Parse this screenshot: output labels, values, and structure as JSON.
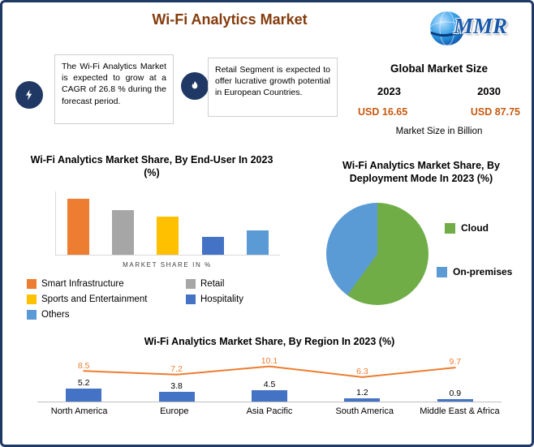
{
  "page": {
    "title": "Wi-Fi Analytics Market",
    "logo_text": "MMR"
  },
  "callouts": [
    {
      "icon": "lightning-bolt-icon",
      "text": "The Wi-Fi Analytics Market is expected to grow at a CAGR of 26.8 % during the forecast period."
    },
    {
      "icon": "flame-icon",
      "text": "Retail Segment is expected to offer lucrative growth potential in European Countries."
    }
  ],
  "market_size": {
    "heading": "Global Market Size",
    "years": [
      "2023",
      "2030"
    ],
    "values": [
      "USD 16.65",
      "USD 87.75"
    ],
    "note": "Market Size in Billion"
  },
  "colors": {
    "title_accent": "#843C0C",
    "usd_value_accent": "#C55A11",
    "page_border": "#1F3864",
    "icon_circle": "#203864"
  },
  "chart_data": [
    {
      "type": "bar",
      "title": "Wi-Fi Analytics Market Share, By End-User In 2023 (%)",
      "xlabel": "MARKET SHARE IN %",
      "categories": [
        "Smart Infrastructure",
        "Retail",
        "Sports and Entertainment",
        "Hospitality",
        "Others"
      ],
      "values": [
        35,
        28,
        24,
        11,
        15
      ],
      "colors": [
        "#ED7D31",
        "#A6A6A6",
        "#FFC000",
        "#4472C4",
        "#5B9BD5"
      ],
      "ylim": [
        0,
        40
      ],
      "grid": false,
      "legend_position": "bottom-left"
    },
    {
      "type": "pie",
      "title": "Wi-Fi Analytics Market Share, By Deployment Mode In 2023 (%)",
      "labels": [
        "Cloud",
        "On-premises"
      ],
      "values": [
        60,
        40
      ],
      "colors": [
        "#70AD47",
        "#5B9BD5"
      ],
      "legend_position": "right"
    },
    {
      "type": "bar+line",
      "title": "Wi-Fi Analytics Market Share, By Region In 2023 (%)",
      "categories": [
        "North America",
        "Europe",
        "Asia Pacific",
        "South America",
        "Middle East & Africa"
      ],
      "series": [
        {
          "name": "bar",
          "type": "bar",
          "color": "#4472C4",
          "values": [
            5.2,
            3.8,
            4.5,
            1.2,
            0.9
          ]
        },
        {
          "name": "line",
          "type": "line",
          "color": "#ED7D31",
          "values": [
            8.5,
            7.2,
            10.1,
            6.3,
            9.7
          ]
        }
      ],
      "grid": false,
      "legend_position": "none"
    }
  ]
}
